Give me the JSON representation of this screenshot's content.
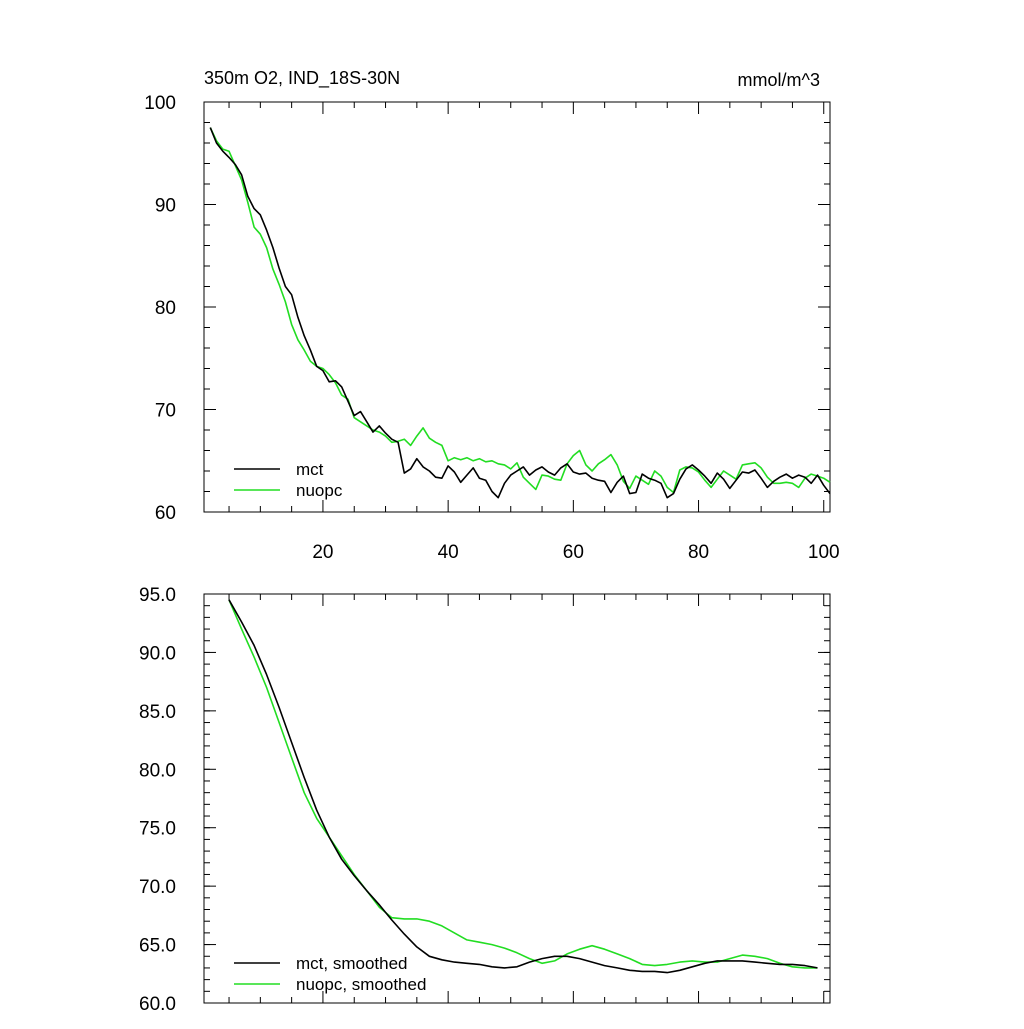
{
  "chart_data": [
    {
      "type": "line",
      "title": "350m O2, IND_18S-30N",
      "units": "mmol/m^3",
      "xlim": [
        1,
        101
      ],
      "ylim": [
        60,
        100
      ],
      "xticks": [
        20,
        40,
        60,
        80,
        100
      ],
      "xtick_labels": [
        "20",
        "40",
        "60",
        "80",
        "100"
      ],
      "yticks": [
        60,
        70,
        80,
        90,
        100
      ],
      "ytick_labels": [
        "60",
        "70",
        "80",
        "90",
        "100"
      ],
      "x_tick_labels_shown": true,
      "legend": "bottom-left",
      "grid": false,
      "series": [
        {
          "name": "mct",
          "color": "#000000",
          "x": [
            2,
            3,
            4,
            5,
            6,
            7,
            8,
            9,
            10,
            11,
            12,
            13,
            14,
            15,
            16,
            17,
            18,
            19,
            20,
            21,
            22,
            23,
            24,
            25,
            26,
            27,
            28,
            29,
            30,
            31,
            32,
            33,
            34,
            35,
            36,
            37,
            38,
            39,
            40,
            41,
            42,
            43,
            44,
            45,
            46,
            47,
            48,
            49,
            50,
            51,
            52,
            53,
            54,
            55,
            56,
            57,
            58,
            59,
            60,
            61,
            62,
            63,
            64,
            65,
            66,
            67,
            68,
            69,
            70,
            71,
            72,
            73,
            74,
            75,
            76,
            77,
            78,
            79,
            80,
            81,
            82,
            83,
            84,
            85,
            86,
            87,
            88,
            89,
            90,
            91,
            92,
            93,
            94,
            95,
            96,
            97,
            98,
            99,
            100,
            101
          ],
          "y": [
            97.5,
            96.0,
            95.2,
            94.6,
            93.9,
            92.9,
            90.8,
            89.6,
            89.0,
            87.5,
            85.8,
            83.8,
            82.0,
            81.2,
            79.0,
            77.2,
            75.8,
            74.2,
            73.8,
            72.7,
            72.8,
            72.2,
            70.8,
            69.4,
            69.8,
            68.8,
            67.8,
            68.4,
            67.7,
            67.1,
            66.8,
            63.8,
            64.2,
            65.2,
            64.4,
            64.0,
            63.4,
            63.3,
            64.5,
            63.9,
            62.9,
            63.6,
            64.3,
            63.3,
            63.1,
            62.0,
            61.4,
            62.8,
            63.6,
            64.0,
            64.4,
            63.6,
            64.1,
            64.4,
            63.9,
            63.6,
            64.3,
            64.7,
            63.9,
            63.7,
            63.8,
            63.3,
            63.1,
            63.0,
            61.9,
            62.9,
            63.5,
            61.8,
            61.9,
            63.7,
            63.3,
            63.1,
            62.8,
            61.4,
            61.8,
            63.2,
            64.2,
            64.6,
            64.1,
            63.5,
            62.8,
            63.8,
            63.2,
            62.3,
            63.1,
            63.9,
            63.8,
            64.1,
            63.3,
            62.4,
            63.0,
            63.4,
            63.7,
            63.3,
            63.6,
            63.4,
            62.8,
            63.6,
            62.6,
            61.8
          ]
        },
        {
          "name": "nuopc",
          "color": "#22dd22",
          "x": [
            2,
            3,
            4,
            5,
            6,
            7,
            8,
            9,
            10,
            11,
            12,
            13,
            14,
            15,
            16,
            17,
            18,
            19,
            20,
            21,
            22,
            23,
            24,
            25,
            26,
            27,
            28,
            29,
            30,
            31,
            32,
            33,
            34,
            35,
            36,
            37,
            38,
            39,
            40,
            41,
            42,
            43,
            44,
            45,
            46,
            47,
            48,
            49,
            50,
            51,
            52,
            53,
            54,
            55,
            56,
            57,
            58,
            59,
            60,
            61,
            62,
            63,
            64,
            65,
            66,
            67,
            68,
            69,
            70,
            71,
            72,
            73,
            74,
            75,
            76,
            77,
            78,
            79,
            80,
            81,
            82,
            83,
            84,
            85,
            86,
            87,
            88,
            89,
            90,
            91,
            92,
            93,
            94,
            95,
            96,
            97,
            98,
            99,
            100,
            101
          ],
          "y": [
            97.5,
            96.2,
            95.4,
            95.2,
            93.8,
            92.4,
            90.2,
            87.8,
            87.1,
            85.8,
            83.7,
            82.2,
            80.5,
            78.3,
            76.8,
            75.8,
            74.7,
            74.2,
            74.0,
            73.4,
            72.6,
            71.4,
            71.0,
            69.2,
            68.8,
            68.4,
            68.0,
            67.8,
            67.4,
            66.8,
            66.9,
            67.1,
            66.5,
            67.4,
            68.2,
            67.2,
            66.8,
            66.5,
            65.0,
            65.3,
            65.1,
            65.3,
            65.0,
            65.2,
            64.9,
            65.0,
            64.7,
            64.6,
            64.2,
            64.8,
            63.4,
            62.8,
            62.2,
            63.6,
            63.5,
            63.2,
            63.1,
            64.7,
            65.5,
            66.0,
            64.6,
            64.0,
            64.7,
            65.1,
            65.6,
            64.6,
            63.0,
            62.3,
            63.5,
            63.1,
            62.7,
            64.0,
            63.5,
            62.4,
            61.9,
            64.1,
            64.4,
            64.3,
            63.9,
            63.1,
            62.4,
            63.2,
            64.0,
            63.6,
            63.2,
            64.6,
            64.7,
            64.8,
            64.3,
            63.4,
            62.8,
            62.8,
            62.9,
            62.8,
            62.4,
            63.3,
            63.7,
            63.5,
            63.3,
            62.9
          ]
        }
      ]
    },
    {
      "type": "line",
      "title": "",
      "xlim": [
        1,
        101
      ],
      "ylim": [
        60,
        95
      ],
      "xticks": [
        20,
        40,
        60,
        80,
        100
      ],
      "xtick_labels": [],
      "yticks": [
        60,
        65,
        70,
        75,
        80,
        85,
        90,
        95
      ],
      "ytick_labels": [
        "60.0",
        "65.0",
        "70.0",
        "75.0",
        "80.0",
        "85.0",
        "90.0",
        "95.0"
      ],
      "x_tick_labels_shown": false,
      "legend": "bottom-left",
      "grid": false,
      "series": [
        {
          "name": "mct, smoothed",
          "color": "#000000",
          "x": [
            5,
            7,
            9,
            11,
            13,
            15,
            17,
            19,
            21,
            23,
            25,
            27,
            29,
            31,
            33,
            35,
            37,
            39,
            41,
            43,
            45,
            47,
            49,
            51,
            53,
            55,
            57,
            59,
            61,
            63,
            65,
            67,
            69,
            71,
            73,
            75,
            77,
            79,
            81,
            83,
            85,
            87,
            89,
            91,
            93,
            95,
            97,
            99
          ],
          "y": [
            94.5,
            92.6,
            90.6,
            88.1,
            85.3,
            82.3,
            79.3,
            76.5,
            74.2,
            72.3,
            70.9,
            69.6,
            68.4,
            67.1,
            65.9,
            64.8,
            64.0,
            63.7,
            63.5,
            63.4,
            63.3,
            63.1,
            63.0,
            63.1,
            63.5,
            63.8,
            64.0,
            64.0,
            63.8,
            63.5,
            63.2,
            63.0,
            62.8,
            62.7,
            62.7,
            62.6,
            62.8,
            63.1,
            63.4,
            63.6,
            63.6,
            63.6,
            63.5,
            63.4,
            63.3,
            63.3,
            63.2,
            63.0
          ]
        },
        {
          "name": "nuopc, smoothed",
          "color": "#22dd22",
          "x": [
            5,
            7,
            9,
            11,
            13,
            15,
            17,
            19,
            21,
            23,
            25,
            27,
            29,
            31,
            33,
            35,
            37,
            39,
            41,
            43,
            45,
            47,
            49,
            51,
            53,
            55,
            57,
            59,
            61,
            63,
            65,
            67,
            69,
            71,
            73,
            75,
            77,
            79,
            81,
            83,
            85,
            87,
            89,
            91,
            93,
            95,
            97,
            99
          ],
          "y": [
            94.5,
            92.0,
            89.6,
            87.0,
            84.0,
            81.0,
            78.0,
            75.8,
            74.2,
            72.6,
            71.0,
            69.6,
            68.2,
            67.3,
            67.2,
            67.2,
            67.0,
            66.6,
            66.0,
            65.4,
            65.2,
            65.0,
            64.7,
            64.3,
            63.8,
            63.4,
            63.6,
            64.2,
            64.6,
            64.9,
            64.6,
            64.2,
            63.8,
            63.3,
            63.2,
            63.3,
            63.5,
            63.6,
            63.5,
            63.5,
            63.8,
            64.1,
            64.0,
            63.8,
            63.4,
            63.1,
            63.0,
            63.0
          ]
        }
      ]
    }
  ]
}
